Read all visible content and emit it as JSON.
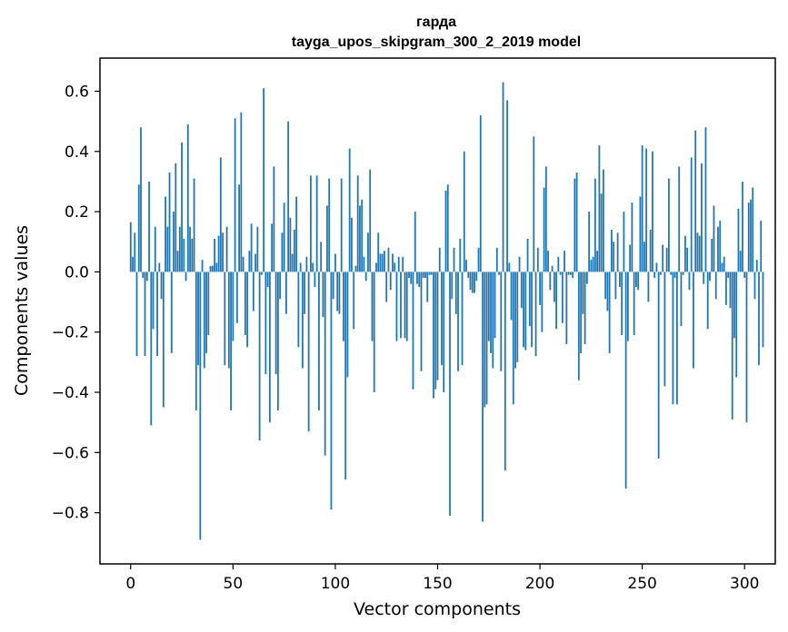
{
  "chart_data": {
    "type": "bar",
    "title": "гарда",
    "subtitle": "tayga_upos_skipgram_300_2_2019 model",
    "xlabel": "Vector components",
    "ylabel": "Components values",
    "xlim": [
      -15,
      315
    ],
    "ylim": [
      -0.97,
      0.71
    ],
    "xticks": [
      0,
      50,
      100,
      150,
      200,
      250,
      300
    ],
    "yticks": [
      -0.8,
      -0.6,
      -0.4,
      -0.2,
      0.0,
      0.2,
      0.4,
      0.6
    ],
    "ytick_labels": [
      "−0.8",
      "−0.6",
      "−0.4",
      "−0.2",
      "0.0",
      "0.2",
      "0.4",
      "0.6"
    ],
    "xtick_labels": [
      "0",
      "50",
      "100",
      "150",
      "200",
      "250",
      "300"
    ],
    "bar_color": "#1f77b4",
    "grid": false,
    "x_start": 0,
    "values": [
      0.165,
      0.05,
      0.13,
      -0.28,
      0.29,
      0.48,
      -0.02,
      -0.28,
      -0.03,
      0.3,
      -0.51,
      -0.19,
      0.15,
      -0.28,
      0.03,
      -0.09,
      -0.45,
      0.25,
      0.15,
      0.33,
      -0.27,
      0.2,
      0.36,
      0.07,
      0.15,
      0.43,
      0.11,
      -0.03,
      0.49,
      0.15,
      0.11,
      0.31,
      -0.46,
      -0.31,
      -0.89,
      0.04,
      -0.32,
      -0.27,
      -0.21,
      0.02,
      0.02,
      0.11,
      0.03,
      0.12,
      0.38,
      0.13,
      -0.31,
      0.15,
      -0.32,
      -0.46,
      -0.23,
      0.51,
      -0.17,
      0.29,
      0.53,
      0.05,
      -0.21,
      -0.25,
      0.07,
      0.16,
      -0.13,
      0.06,
      0.15,
      -0.56,
      -0.01,
      0.61,
      -0.34,
      -0.05,
      -0.5,
      0.16,
      0.35,
      -0.34,
      -0.46,
      -0.09,
      0.13,
      0.23,
      -0.14,
      0.5,
      0.18,
      0.06,
      0.14,
      0.25,
      -0.25,
      0.03,
      -0.32,
      -0.14,
      0.05,
      -0.53,
      0.32,
      0.03,
      -0.05,
      0.32,
      -0.46,
      0.1,
      -0.15,
      -0.61,
      0.22,
      0.31,
      -0.79,
      -0.09,
      0.06,
      -0.13,
      -0.14,
      0.31,
      -0.23,
      -0.69,
      -0.35,
      0.41,
      0.18,
      -0.19,
      0.02,
      0.32,
      0.22,
      0.24,
      0.05,
      -0.03,
      0.13,
      0.34,
      -0.23,
      -0.4,
      0.03,
      0.13,
      0.06,
      0.06,
      0.07,
      -0.1,
      0.08,
      -0.06,
      0.06,
      0.03,
      -0.23,
      0.05,
      -0.22,
      0.05,
      -0.22,
      -0.23,
      -0.02,
      -0.04,
      -0.39,
      0.2,
      -0.04,
      -0.05,
      -0.33,
      -0.02,
      -0.02,
      -0.1,
      -0.01,
      -0.01,
      -0.42,
      -0.39,
      -0.36,
      0.08,
      -0.31,
      -0.4,
      0.27,
      0.29,
      -0.81,
      -0.09,
      0.08,
      -0.14,
      -0.33,
      0.11,
      -0.31,
      0.4,
      0.04,
      -0.02,
      -0.06,
      -0.07,
      -0.07,
      -0.03,
      0.08,
      0.52,
      -0.83,
      -0.45,
      -0.44,
      -0.23,
      -0.27,
      -0.32,
      -0.22,
      0.08,
      -0.01,
      -0.33,
      0.63,
      -0.66,
      0.57,
      0.03,
      -0.16,
      -0.44,
      -0.32,
      -0.3,
      0.05,
      -0.12,
      -0.25,
      -0.26,
      0.11,
      -0.18,
      -0.25,
      0.45,
      -0.28,
      0.08,
      -0.11,
      -0.2,
      0.28,
      0.35,
      0.07,
      -0.06,
      0.02,
      -0.1,
      -0.19,
      0.05,
      -0.01,
      -0.17,
      0.07,
      -0.24,
      -0.01,
      -0.01,
      -0.02,
      0.31,
      0.33,
      -0.36,
      -0.27,
      -0.14,
      -0.24,
      -0.04,
      0.2,
      0.04,
      0.05,
      0.31,
      0.07,
      0.42,
      0.26,
      0.34,
      -0.09,
      -0.13,
      -0.27,
      0.14,
      0.1,
      -0.09,
      0.13,
      -0.05,
      -0.21,
      0.2,
      -0.72,
      -0.23,
      0.09,
      0.23,
      -0.21,
      -0.05,
      -0.06,
      0.25,
      0.42,
      0.1,
      0.41,
      -0.1,
      0.14,
      0.4,
      -0.02,
      0.03,
      -0.62,
      -0.01,
      0.09,
      -0.38,
      0.08,
      0.31,
      -0.01,
      -0.44,
      -0.02,
      -0.44,
      0.35,
      -0.18,
      -0.01,
      0.12,
      0.08,
      -0.06,
      0.38,
      -0.32,
      0.47,
      0.13,
      0.12,
      0.36,
      -0.04,
      0.48,
      -0.19,
      -0.03,
      0.11,
      0.22,
      -0.09,
      0.15,
      0.17,
      0.03,
      0.05,
      -0.11,
      -0.02,
      -0.12,
      -0.49,
      -0.22,
      -0.35,
      0.21,
      0.07,
      0.3,
      -0.02,
      -0.5,
      0.23,
      0.24,
      0.28,
      -0.09,
      0.04,
      -0.31,
      0.17,
      -0.25
    ]
  }
}
